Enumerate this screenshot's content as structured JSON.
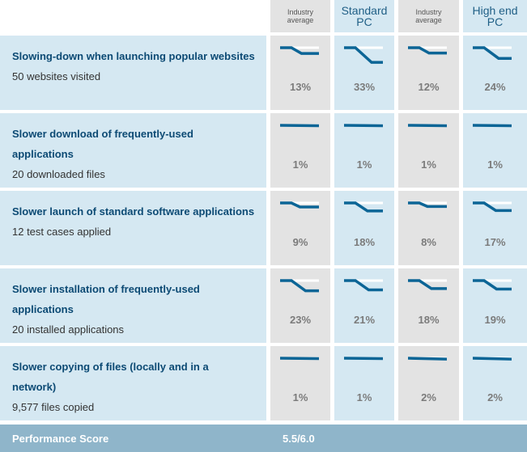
{
  "header": {
    "col1": {
      "lines": [
        "Industry",
        "average"
      ],
      "style": "small"
    },
    "col2": {
      "lines": [
        "Standard",
        "PC"
      ],
      "style": "big"
    },
    "col3": {
      "lines": [
        "Industry",
        "average"
      ],
      "style": "small"
    },
    "col4": {
      "lines": [
        "High end",
        "PC"
      ],
      "style": "big"
    }
  },
  "rows": [
    {
      "title": "Slowing-down when launching popular websites",
      "sub": "50 websites visited",
      "values": [
        "13%",
        "33%",
        "12%",
        "24%"
      ],
      "levels": [
        0.13,
        0.33,
        0.12,
        0.24
      ]
    },
    {
      "title": "Slower download of frequently-used applications",
      "sub": "20 downloaded files",
      "values": [
        "1%",
        "1%",
        "1%",
        "1%"
      ],
      "levels": [
        0.01,
        0.01,
        0.01,
        0.01
      ]
    },
    {
      "title": "Slower launch of standard software applications",
      "sub": "12 test cases applied",
      "values": [
        "9%",
        "18%",
        "8%",
        "17%"
      ],
      "levels": [
        0.09,
        0.18,
        0.08,
        0.17
      ]
    },
    {
      "title": "Slower installation of frequently-used applications",
      "sub": "20 installed applications",
      "values": [
        "23%",
        "21%",
        "18%",
        "19%"
      ],
      "levels": [
        0.23,
        0.21,
        0.18,
        0.19
      ]
    },
    {
      "title": "Slower copying of files (locally and in a network)",
      "sub": "9,577 files copied",
      "values": [
        "1%",
        "1%",
        "2%",
        "2%"
      ],
      "levels": [
        0.01,
        0.01,
        0.02,
        0.02
      ]
    }
  ],
  "footer": {
    "label": "Performance Score",
    "value": "5.5/6.0"
  },
  "colors": {
    "line": "#0c6596",
    "label": "#0c4a74",
    "gray": "#e3e3e3",
    "blue": "#d5e8f2",
    "footer": "#8fb5ca"
  }
}
